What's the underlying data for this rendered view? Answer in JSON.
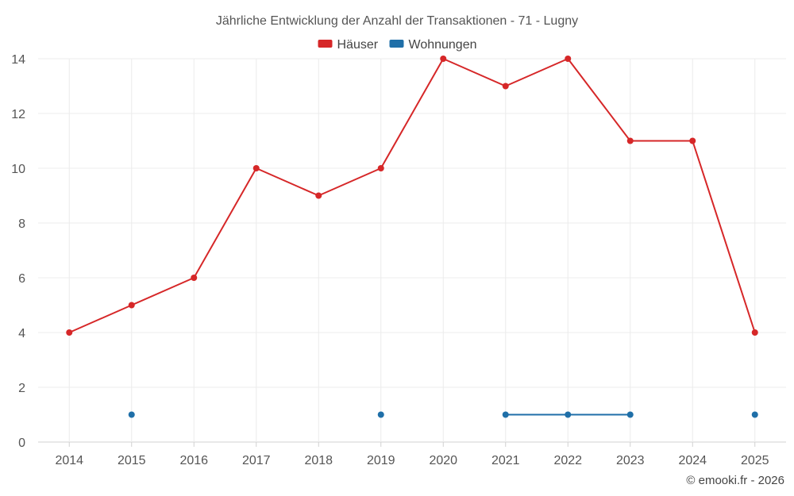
{
  "chart_data": {
    "type": "line",
    "title": "Jährliche Entwicklung der Anzahl der Transaktionen - 71 - Lugny",
    "xlabel": "",
    "ylabel": "",
    "x": [
      "2014",
      "2015",
      "2016",
      "2017",
      "2018",
      "2019",
      "2020",
      "2021",
      "2022",
      "2023",
      "2024",
      "2025"
    ],
    "ylim": [
      0,
      14
    ],
    "yticks": [
      0,
      2,
      4,
      6,
      8,
      10,
      12,
      14
    ],
    "grid": true,
    "legend_position": "top-center",
    "series": [
      {
        "name": "Häuser",
        "color": "#d62728",
        "values": [
          4,
          5,
          6,
          10,
          9,
          10,
          14,
          13,
          14,
          11,
          11,
          4
        ]
      },
      {
        "name": "Wohnungen",
        "color": "#1f6fa8",
        "values": [
          null,
          1,
          null,
          null,
          null,
          1,
          null,
          1,
          1,
          1,
          null,
          1
        ]
      }
    ]
  },
  "credit": "© emooki.fr - 2026"
}
